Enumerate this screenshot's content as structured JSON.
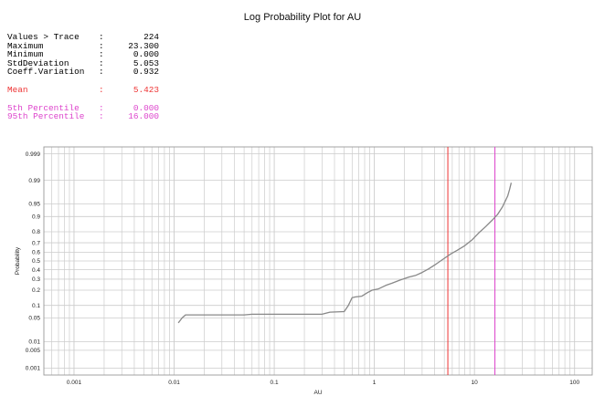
{
  "title": "Log Probability Plot for AU",
  "stats": {
    "group1": [
      {
        "label": "Values > Trace",
        "sep": ":",
        "value": "224"
      },
      {
        "label": "Maximum",
        "sep": ":",
        "value": "23.300"
      },
      {
        "label": "Minimum",
        "sep": ":",
        "value": "0.000"
      },
      {
        "label": "StdDeviation",
        "sep": ":",
        "value": "5.053"
      },
      {
        "label": "Coeff.Variation",
        "sep": ":",
        "value": "0.932"
      }
    ],
    "mean": {
      "label": "Mean",
      "sep": ":",
      "value": "5.423"
    },
    "percentiles": [
      {
        "label": "5th Percentile",
        "sep": ":",
        "value": "0.000"
      },
      {
        "label": "95th Percentile",
        "sep": ":",
        "value": "16.000"
      }
    ]
  },
  "colors": {
    "mean": "#ee3333",
    "percentile": "#dd44cc",
    "curve": "#888888",
    "grid": "#cccccc",
    "text": "#222222"
  },
  "chart_data": {
    "type": "line",
    "title": "Log Probability Plot for AU",
    "xlabel": "AU",
    "ylabel": "Probability",
    "x_scale": "log",
    "y_scale": "probability",
    "xlim": [
      0.0005,
      150
    ],
    "ylim": [
      0.0005,
      0.9995
    ],
    "xticks": [
      {
        "value": 0.001,
        "label": "0.001"
      },
      {
        "value": 0.01,
        "label": "0.01"
      },
      {
        "value": 0.1,
        "label": "0.1"
      },
      {
        "value": 1,
        "label": "1"
      },
      {
        "value": 10,
        "label": "10"
      },
      {
        "value": 100,
        "label": "100"
      }
    ],
    "yticks": [
      {
        "value": 0.999,
        "label": "0.999"
      },
      {
        "value": 0.99,
        "label": "0.99"
      },
      {
        "value": 0.95,
        "label": "0.95"
      },
      {
        "value": 0.9,
        "label": "0.9"
      },
      {
        "value": 0.8,
        "label": "0.8"
      },
      {
        "value": 0.7,
        "label": "0.7"
      },
      {
        "value": 0.6,
        "label": "0.6"
      },
      {
        "value": 0.5,
        "label": "0.5"
      },
      {
        "value": 0.4,
        "label": "0.4"
      },
      {
        "value": 0.3,
        "label": "0.3"
      },
      {
        "value": 0.2,
        "label": "0.2"
      },
      {
        "value": 0.1,
        "label": "0.1"
      },
      {
        "value": 0.05,
        "label": "0.05"
      },
      {
        "value": 0.01,
        "label": "0.01"
      },
      {
        "value": 0.005,
        "label": "0.005"
      },
      {
        "value": 0.001,
        "label": "0.001"
      }
    ],
    "grid": true,
    "vlines": [
      {
        "x": 5.423,
        "color": "#ee3333"
      },
      {
        "x": 16.0,
        "color": "#dd44cc"
      }
    ],
    "series": [
      {
        "x": [
          0.011,
          0.012,
          0.013,
          0.05,
          0.06,
          0.3,
          0.36,
          0.5,
          0.55,
          0.6,
          0.65,
          0.75,
          0.85,
          0.95,
          1.1,
          1.3,
          1.5,
          1.8,
          2.2,
          2.6,
          3.0,
          3.5,
          4.2,
          5.0,
          5.8,
          6.7,
          8.0,
          9.5,
          11.0,
          13.0,
          15.0,
          17.0,
          19.0,
          20.5,
          21.5,
          22.4,
          23.3
        ],
        "y": [
          0.037,
          0.05,
          0.06,
          0.06,
          0.062,
          0.062,
          0.07,
          0.072,
          0.1,
          0.145,
          0.15,
          0.155,
          0.18,
          0.2,
          0.21,
          0.24,
          0.26,
          0.29,
          0.32,
          0.34,
          0.37,
          0.41,
          0.47,
          0.53,
          0.58,
          0.62,
          0.67,
          0.73,
          0.79,
          0.84,
          0.88,
          0.91,
          0.94,
          0.96,
          0.97,
          0.98,
          0.988
        ]
      }
    ]
  }
}
